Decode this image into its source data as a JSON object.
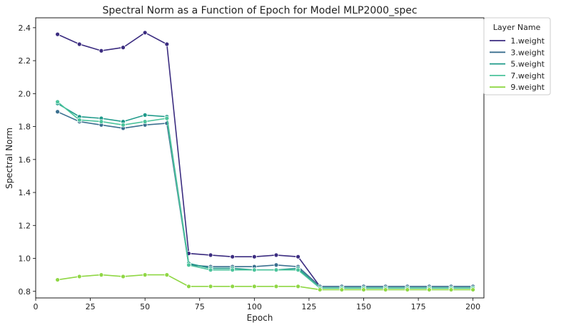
{
  "chart_data": {
    "type": "line",
    "title": "Spectral Norm as a Function of Epoch for Model MLP2000_spec",
    "xlabel": "Epoch",
    "ylabel": "Spectral Norm",
    "xlim": [
      0,
      205
    ],
    "ylim": [
      0.76,
      2.46
    ],
    "xticks": [
      0,
      25,
      50,
      75,
      100,
      125,
      150,
      175,
      200
    ],
    "yticks": [
      0.8,
      1.0,
      1.2,
      1.4,
      1.6,
      1.8,
      2.0,
      2.2,
      2.4
    ],
    "xtick_labels": [
      "0",
      "25",
      "50",
      "75",
      "100",
      "125",
      "150",
      "175",
      "200"
    ],
    "ytick_labels": [
      "0.8",
      "1.0",
      "1.2",
      "1.4",
      "1.6",
      "1.8",
      "2.0",
      "2.2",
      "2.4"
    ],
    "grid": false,
    "legend": {
      "title": "Layer Name",
      "placement": "outside-right-top"
    },
    "x": [
      10,
      20,
      30,
      40,
      50,
      60,
      70,
      80,
      90,
      100,
      110,
      120,
      130,
      140,
      150,
      160,
      170,
      180,
      190,
      200
    ],
    "series": [
      {
        "name": "1.weight",
        "color": "#3b2c80",
        "values": [
          2.36,
          2.3,
          2.26,
          2.28,
          2.37,
          2.3,
          1.03,
          1.02,
          1.01,
          1.01,
          1.02,
          1.01,
          0.83,
          0.83,
          0.83,
          0.83,
          0.83,
          0.83,
          0.83,
          0.83
        ]
      },
      {
        "name": "3.weight",
        "color": "#3a6f8f",
        "values": [
          1.89,
          1.83,
          1.81,
          1.79,
          1.81,
          1.82,
          0.96,
          0.95,
          0.95,
          0.95,
          0.96,
          0.95,
          0.83,
          0.83,
          0.83,
          0.83,
          0.83,
          0.83,
          0.83,
          0.83
        ]
      },
      {
        "name": "5.weight",
        "color": "#1f9a8a",
        "values": [
          1.94,
          1.86,
          1.85,
          1.83,
          1.87,
          1.86,
          0.97,
          0.94,
          0.94,
          0.93,
          0.93,
          0.94,
          0.82,
          0.82,
          0.82,
          0.82,
          0.82,
          0.82,
          0.82,
          0.82
        ]
      },
      {
        "name": "7.weight",
        "color": "#4cc49c",
        "values": [
          1.95,
          1.84,
          1.83,
          1.81,
          1.83,
          1.85,
          0.96,
          0.93,
          0.93,
          0.93,
          0.93,
          0.93,
          0.82,
          0.82,
          0.82,
          0.82,
          0.82,
          0.82,
          0.82,
          0.82
        ]
      },
      {
        "name": "9.weight",
        "color": "#8fd744",
        "values": [
          0.87,
          0.89,
          0.9,
          0.89,
          0.9,
          0.9,
          0.83,
          0.83,
          0.83,
          0.83,
          0.83,
          0.83,
          0.81,
          0.81,
          0.81,
          0.81,
          0.81,
          0.81,
          0.81,
          0.81
        ]
      }
    ]
  }
}
